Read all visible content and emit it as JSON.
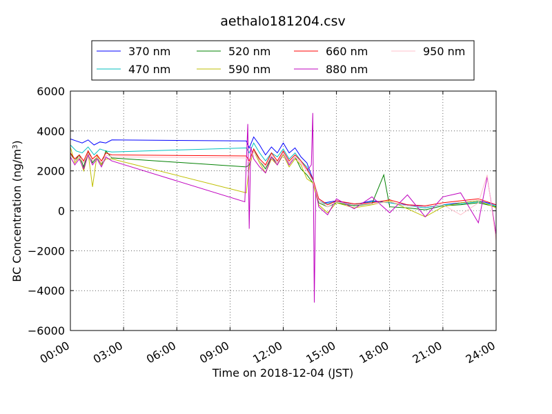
{
  "chart_data": {
    "type": "line",
    "title": "aethalo181204.csv",
    "xlabel": "Time on 2018-12-04 (JST)",
    "ylabel": "BC Concentration (ng/m³)",
    "ylabel_main": "BC Concentration (ng/m",
    "ylabel_sup": "3",
    "ylabel_end": ")",
    "xlim": [
      "00:00",
      "24:00"
    ],
    "ylim": [
      -6000,
      6000
    ],
    "grid": true,
    "legend_position": "top-center",
    "x_ticks": [
      "00:00",
      "03:00",
      "06:00",
      "09:00",
      "12:00",
      "15:00",
      "18:00",
      "21:00",
      "24:00"
    ],
    "y_ticks": [
      "6000",
      "4000",
      "2000",
      "0",
      "−2000",
      "−4000",
      "−6000"
    ],
    "series": [
      {
        "name": "370 nm",
        "color": "#0000ff",
        "x": [
          "00:00",
          "00:20",
          "00:40",
          "01:00",
          "01:20",
          "01:40",
          "02:00",
          "02:20",
          "09:55",
          "10:05",
          "10:20",
          "10:40",
          "11:00",
          "11:20",
          "11:40",
          "12:00",
          "12:20",
          "12:40",
          "13:00",
          "13:20",
          "13:40",
          "14:00",
          "14:20",
          "15:00",
          "16:00",
          "17:00",
          "18:00",
          "19:00",
          "20:00",
          "21:00",
          "22:00",
          "23:00",
          "24:00"
        ],
        "y": [
          3600,
          3500,
          3400,
          3550,
          3300,
          3450,
          3400,
          3550,
          3500,
          3150,
          3700,
          3300,
          2800,
          3200,
          2900,
          3400,
          2900,
          3150,
          2700,
          2400,
          1600,
          600,
          400,
          500,
          300,
          500,
          400,
          300,
          200,
          300,
          400,
          500,
          300
        ]
      },
      {
        "name": "470 nm",
        "color": "#00bfbf",
        "x": [
          "00:00",
          "00:20",
          "00:40",
          "01:00",
          "01:20",
          "01:40",
          "02:00",
          "02:20",
          "09:55",
          "10:05",
          "10:20",
          "10:40",
          "11:00",
          "11:20",
          "11:40",
          "12:00",
          "12:20",
          "12:40",
          "13:00",
          "13:20",
          "13:40",
          "14:00",
          "14:20",
          "15:00",
          "16:00",
          "17:00",
          "18:00",
          "19:00",
          "20:00",
          "21:00",
          "22:00",
          "23:00",
          "24:00"
        ],
        "y": [
          3300,
          3000,
          2900,
          3200,
          2800,
          3100,
          3000,
          2950,
          3150,
          2900,
          3400,
          2900,
          2500,
          2900,
          2700,
          3100,
          2600,
          2900,
          2500,
          2200,
          1500,
          500,
          350,
          450,
          300,
          450,
          400,
          250,
          150,
          300,
          350,
          450,
          250
        ]
      },
      {
        "name": "520 nm",
        "color": "#008000",
        "x": [
          "00:00",
          "00:15",
          "00:30",
          "00:45",
          "01:00",
          "01:15",
          "01:30",
          "01:45",
          "02:00",
          "02:20",
          "09:55",
          "10:05",
          "10:20",
          "10:40",
          "11:00",
          "11:20",
          "11:40",
          "12:00",
          "12:20",
          "12:40",
          "13:00",
          "13:20",
          "13:40",
          "14:00",
          "14:30",
          "15:00",
          "16:00",
          "17:00",
          "17:40",
          "18:00",
          "19:00",
          "20:00",
          "21:00",
          "22:00",
          "23:00",
          "24:00"
        ],
        "y": [
          2900,
          2500,
          2800,
          2200,
          3000,
          2400,
          2700,
          2300,
          3000,
          2650,
          2200,
          2300,
          3100,
          2500,
          2100,
          2700,
          2400,
          2900,
          2400,
          2700,
          2100,
          1800,
          1400,
          400,
          200,
          400,
          250,
          350,
          1800,
          200,
          150,
          50,
          250,
          300,
          400,
          200
        ]
      },
      {
        "name": "590 nm",
        "color": "#bfbf00",
        "x": [
          "00:00",
          "00:15",
          "00:30",
          "00:45",
          "01:00",
          "01:15",
          "01:30",
          "01:45",
          "02:00",
          "02:20",
          "09:55",
          "10:05",
          "10:20",
          "10:40",
          "11:00",
          "11:20",
          "11:40",
          "12:00",
          "12:20",
          "12:40",
          "13:00",
          "13:20",
          "13:40",
          "14:00",
          "14:30",
          "15:00",
          "16:00",
          "17:00",
          "18:00",
          "19:00",
          "20:00",
          "21:00",
          "22:00",
          "23:00",
          "24:00"
        ],
        "y": [
          3200,
          2400,
          2700,
          2000,
          2900,
          1200,
          2800,
          2300,
          2600,
          2600,
          900,
          2200,
          3000,
          2400,
          1900,
          2600,
          2300,
          2800,
          2200,
          2600,
          2300,
          1600,
          1400,
          300,
          -100,
          400,
          150,
          300,
          500,
          100,
          -300,
          200,
          400,
          500,
          150
        ]
      },
      {
        "name": "660 nm",
        "color": "#ff0000",
        "x": [
          "00:00",
          "00:15",
          "00:30",
          "00:45",
          "01:00",
          "01:15",
          "01:30",
          "01:45",
          "02:00",
          "02:20",
          "09:55",
          "10:05",
          "10:20",
          "10:40",
          "11:00",
          "11:20",
          "11:40",
          "12:00",
          "12:20",
          "12:40",
          "13:00",
          "13:20",
          "13:40",
          "14:00",
          "14:30",
          "15:00",
          "16:00",
          "17:00",
          "18:00",
          "19:00",
          "20:00",
          "21:00",
          "22:00",
          "23:00",
          "24:00"
        ],
        "y": [
          2900,
          2600,
          2800,
          2500,
          3000,
          2600,
          2800,
          2500,
          2900,
          2800,
          2750,
          2500,
          3100,
          2600,
          2300,
          2900,
          2500,
          3000,
          2500,
          2800,
          2500,
          2100,
          1600,
          600,
          300,
          500,
          350,
          400,
          550,
          300,
          250,
          400,
          500,
          600,
          300
        ]
      },
      {
        "name": "880 nm",
        "color": "#bf00bf",
        "x": [
          "00:00",
          "00:15",
          "00:30",
          "00:45",
          "01:00",
          "01:15",
          "01:30",
          "01:45",
          "02:00",
          "02:20",
          "09:50",
          "10:00",
          "10:05",
          "10:10",
          "10:20",
          "10:40",
          "11:00",
          "11:20",
          "11:40",
          "12:00",
          "12:20",
          "12:40",
          "13:00",
          "13:20",
          "13:35",
          "13:40",
          "13:45",
          "13:50",
          "14:00",
          "14:30",
          "15:00",
          "16:00",
          "17:00",
          "18:00",
          "19:00",
          "20:00",
          "21:00",
          "22:00",
          "23:00",
          "23:30",
          "24:00"
        ],
        "y": [
          2700,
          2300,
          2600,
          2100,
          2800,
          2300,
          2600,
          2200,
          2700,
          2500,
          450,
          4350,
          -900,
          3200,
          2600,
          2200,
          1900,
          2700,
          2300,
          2900,
          2300,
          2700,
          2400,
          2000,
          2300,
          4900,
          -4600,
          1100,
          200,
          -200,
          600,
          100,
          700,
          -100,
          800,
          -300,
          700,
          900,
          -600,
          1700,
          -1200
        ]
      },
      {
        "name": "950 nm",
        "color": "#ffc0cb",
        "x": [
          "00:00",
          "00:15",
          "00:30",
          "00:45",
          "01:00",
          "01:15",
          "01:30",
          "01:45",
          "02:00",
          "02:20",
          "09:55",
          "10:05",
          "10:20",
          "10:40",
          "11:00",
          "11:20",
          "11:40",
          "12:00",
          "12:20",
          "12:40",
          "13:00",
          "13:20",
          "13:40",
          "14:00",
          "14:30",
          "15:00",
          "16:00",
          "17:00",
          "18:00",
          "19:00",
          "20:00",
          "21:00",
          "22:00",
          "23:00",
          "23:30",
          "24:00"
        ],
        "y": [
          2800,
          2500,
          2700,
          2400,
          2900,
          2500,
          2700,
          2400,
          2800,
          2700,
          2650,
          2400,
          3000,
          2500,
          2200,
          2800,
          2400,
          2900,
          2400,
          2700,
          2400,
          2000,
          1500,
          500,
          200,
          450,
          300,
          350,
          450,
          250,
          200,
          300,
          -200,
          400,
          1800,
          -1500
        ]
      }
    ]
  }
}
